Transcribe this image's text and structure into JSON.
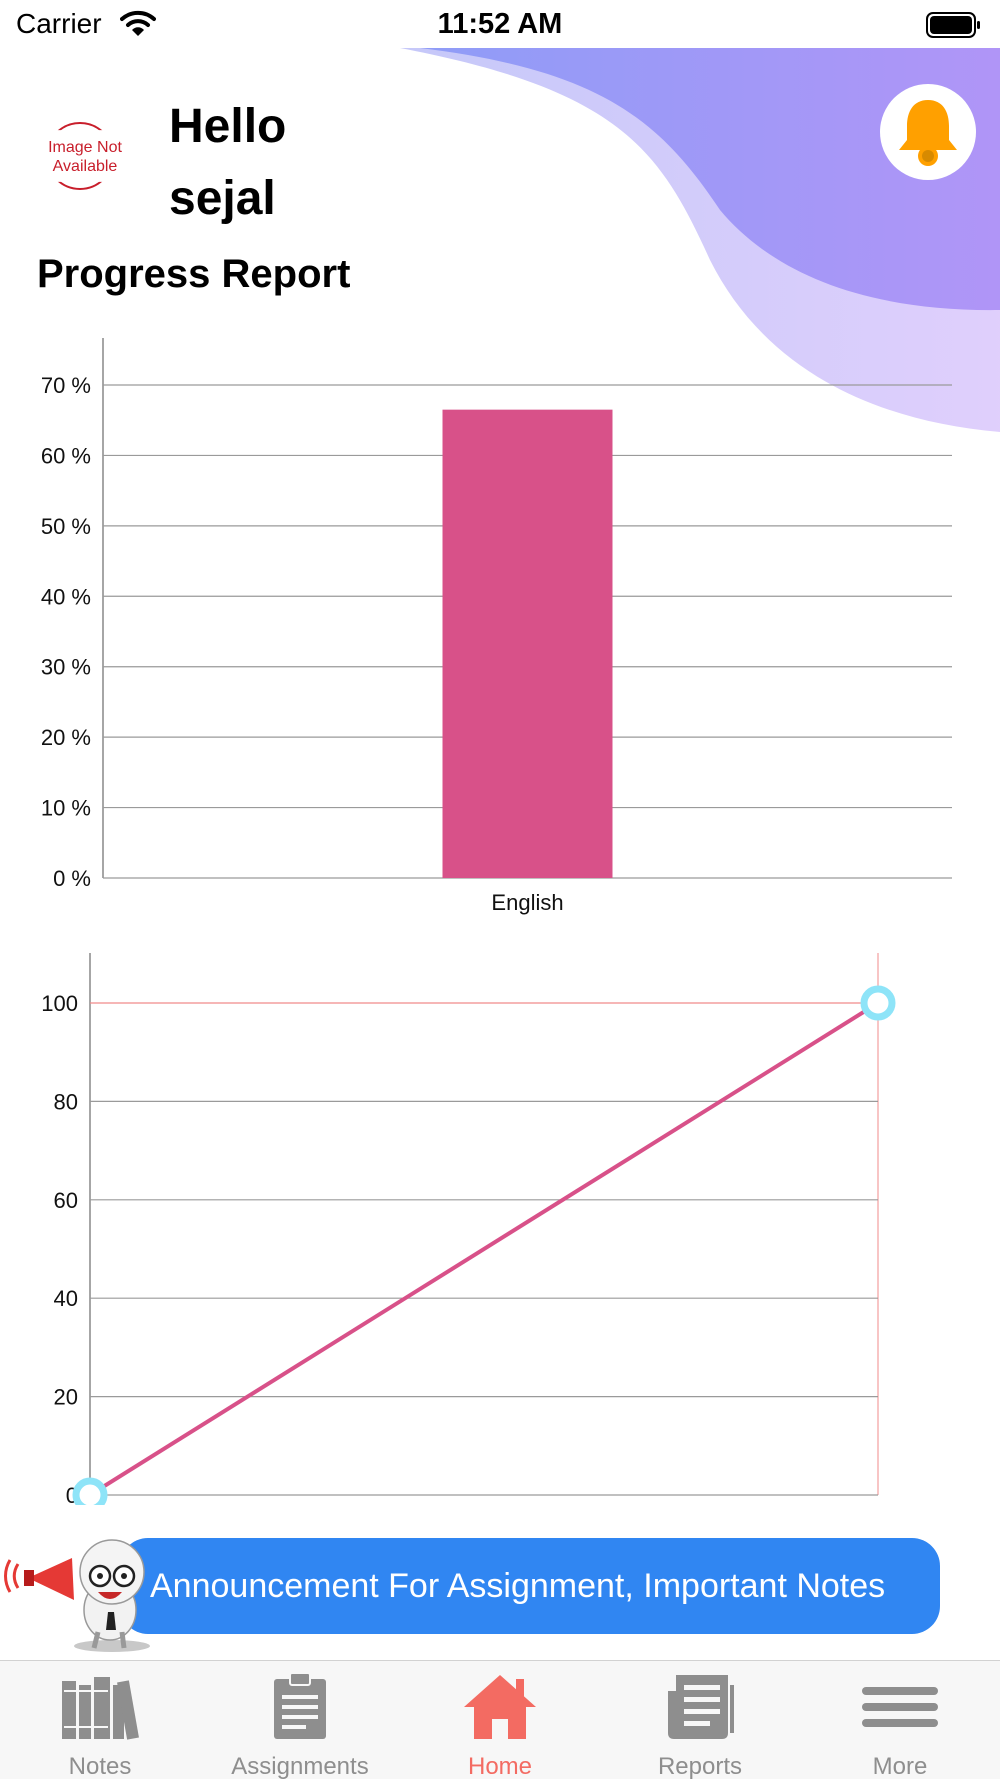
{
  "status_bar": {
    "carrier": "Carrier",
    "time": "11:52 AM"
  },
  "header": {
    "avatar_text": [
      "Image Not",
      "Available"
    ],
    "greeting_line1": "Hello",
    "greeting_line2": "sejal",
    "notification_icon": "bell-icon"
  },
  "section_title": "Progress Report",
  "colors": {
    "wave_dark": "#a39cf6",
    "wave_light": "#d9d0fb",
    "bar": "#d85189",
    "line": "#d85189",
    "marker": "#8ee4f8",
    "limit_line": "#f08b8b",
    "bell": "#ffa000",
    "announce": "#3086f2",
    "tab_active": "#f36b62",
    "tab_inactive": "#8e8e8e"
  },
  "chart_data": [
    {
      "type": "bar",
      "categories": [
        "English"
      ],
      "values": [
        66.5
      ],
      "ylim": [
        0,
        70
      ],
      "y_ticks": [
        "0 %",
        "10 %",
        "20 %",
        "30 %",
        "40 %",
        "50 %",
        "60 %",
        "70 %"
      ],
      "grid": true,
      "legend": "none"
    },
    {
      "type": "line",
      "series": [
        {
          "values": [
            [
              0,
              0
            ],
            [
              1,
              100
            ]
          ]
        }
      ],
      "y_ticks": [
        "0",
        "20",
        "40",
        "60",
        "80",
        "100"
      ],
      "ylim": [
        0,
        100
      ],
      "limit_line": 100,
      "grid": true,
      "legend": "none"
    }
  ],
  "announcement": {
    "text": "Announcement For Assignment, Important Notes",
    "mascot_icon": "megaphone-mascot-icon"
  },
  "tabs": [
    {
      "label": "Notes",
      "icon": "books-icon",
      "active": false
    },
    {
      "label": "Assignments",
      "icon": "clipboard-icon",
      "active": false
    },
    {
      "label": "Home",
      "icon": "home-icon",
      "active": true
    },
    {
      "label": "Reports",
      "icon": "newspaper-icon",
      "active": false
    },
    {
      "label": "More",
      "icon": "menu-icon",
      "active": false
    }
  ]
}
